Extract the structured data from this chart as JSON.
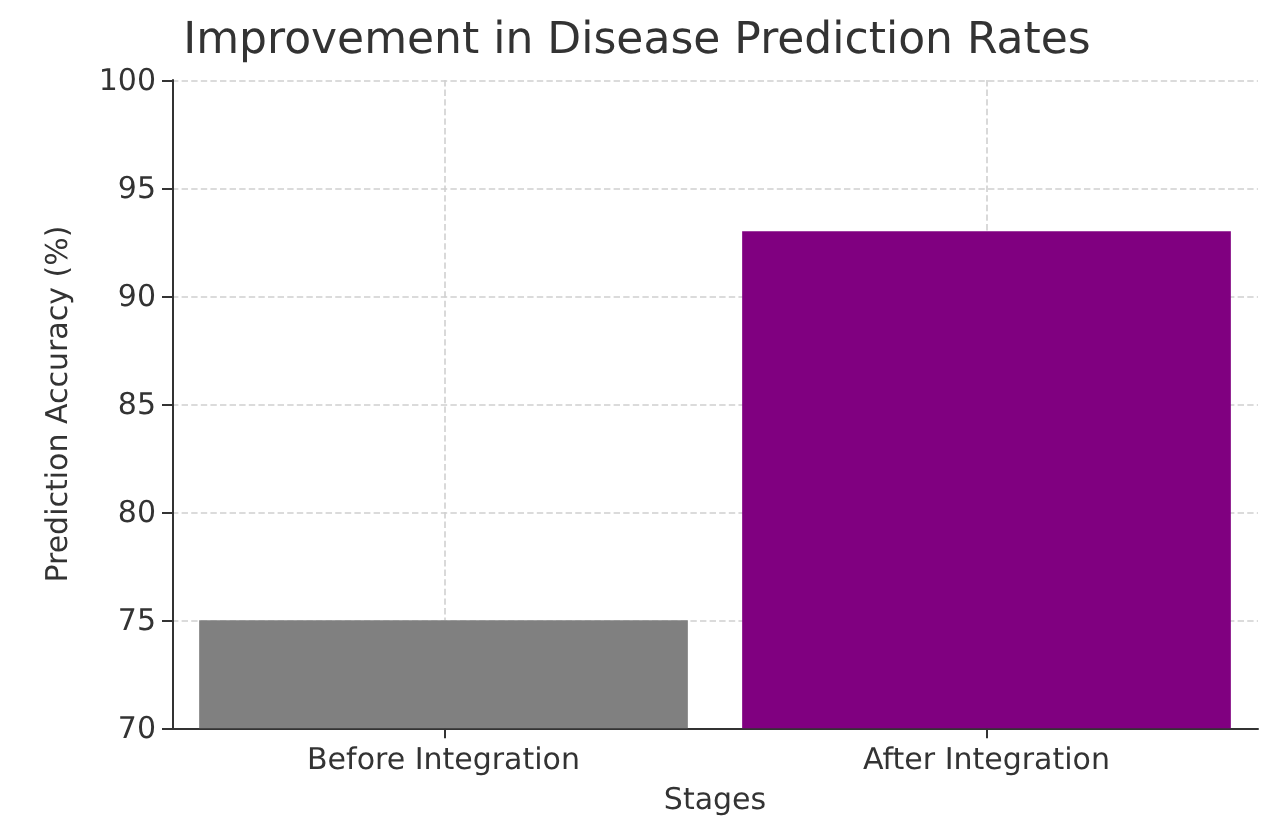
{
  "chart_data": {
    "type": "bar",
    "title": "Improvement in Disease Prediction Rates",
    "xlabel": "Stages",
    "ylabel": "Prediction Accuracy (%)",
    "categories": [
      "Before Integration",
      "After Integration"
    ],
    "values": [
      75,
      93
    ],
    "colors": [
      "#808080",
      "#800080"
    ],
    "ylim": [
      70,
      100
    ],
    "yticks": [
      70,
      75,
      80,
      85,
      90,
      95,
      100
    ],
    "grid": true
  }
}
